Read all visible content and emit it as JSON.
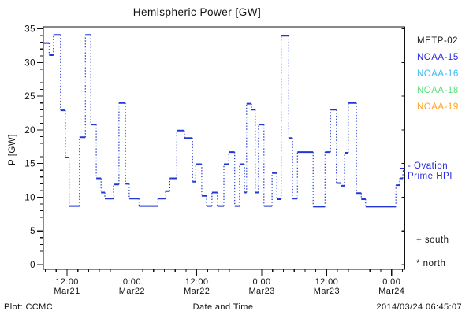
{
  "title": "Hemispheric Power [GW]",
  "footer": {
    "plot_credit": "Plot: CCMC",
    "xaxis_title": "Date and Time",
    "timestamp": "2014/03/24 06:45:07"
  },
  "legend": {
    "satellites": [
      {
        "label": "METP-02",
        "color": "#1a1a1a"
      },
      {
        "label": "NOAA-15",
        "color": "#2a2ae0"
      },
      {
        "label": "NOAA-16",
        "color": "#38bdf0"
      },
      {
        "label": "NOAA-18",
        "color": "#5ce07d"
      },
      {
        "label": "NOAA-19",
        "color": "#ffa126"
      }
    ],
    "line_label_line1": "- Ovation",
    "line_label_line2": "Prime HPI",
    "line_color": "#2a2ae0",
    "south_label": "+ south",
    "north_label": "* north"
  },
  "axis_color": "#111111",
  "chart_data": {
    "type": "line",
    "style": "histogram-step; solid horizontal levels, dotted vertical connectors",
    "title": "Hemispheric Power [GW]",
    "xlabel": "Date and Time",
    "ylabel": "P [GW]",
    "ylim": [
      0,
      35
    ],
    "y_major_step": 5,
    "y_minor_step": 1,
    "x_hours_range": [
      7.6,
      74.45
    ],
    "x_minor_step_hours": 2,
    "x_major_ticks": [
      {
        "hour": 12,
        "time": "12:00",
        "date": "Mar21"
      },
      {
        "hour": 24,
        "time": "0:00",
        "date": "Mar22"
      },
      {
        "hour": 36,
        "time": "12:00",
        "date": "Mar22"
      },
      {
        "hour": 48,
        "time": "0:00",
        "date": "Mar23"
      },
      {
        "hour": 60,
        "time": "12:00",
        "date": "Mar23"
      },
      {
        "hour": 72,
        "time": "0:00",
        "date": "Mar24"
      }
    ],
    "series": [
      {
        "name": "Ovation Prime HPI",
        "color": "#2139d4",
        "hours_since_mar21_0000": [
          7.6,
          8.7,
          9.5,
          10.8,
          11.7,
          12.4,
          14.3,
          15.4,
          16.4,
          17.4,
          18.3,
          19.0,
          20.6,
          21.6,
          22.8,
          23.5,
          25.3,
          28.8,
          30.2,
          31.0,
          32.3,
          33.7,
          35.2,
          35.8,
          36.9,
          37.8,
          38.8,
          39.8,
          41.0,
          41.9,
          43.0,
          43.9,
          44.8,
          45.2,
          46.1,
          46.8,
          47.4,
          48.4,
          49.9,
          50.8,
          51.6,
          53.0,
          53.7,
          54.6,
          57.5,
          59.7,
          60.7,
          61.8,
          62.6,
          63.3,
          64.0,
          65.5,
          66.4,
          67.2,
          72.8,
          73.5,
          74.1
        ],
        "values_gw": [
          32.9,
          31.1,
          34.1,
          22.9,
          15.9,
          8.7,
          18.9,
          34.1,
          20.8,
          12.8,
          10.7,
          9.8,
          11.9,
          24.0,
          12.0,
          9.8,
          8.7,
          9.8,
          10.9,
          12.8,
          19.9,
          18.8,
          12.3,
          14.9,
          10.2,
          8.7,
          10.7,
          8.7,
          14.9,
          16.7,
          8.7,
          14.9,
          10.7,
          23.9,
          23.0,
          10.7,
          20.8,
          8.7,
          13.6,
          9.7,
          34.0,
          18.8,
          9.8,
          16.7,
          8.6,
          16.7,
          23.0,
          12.1,
          11.7,
          16.6,
          24.0,
          10.6,
          9.7,
          8.6,
          11.8,
          12.8,
          13.9
        ]
      }
    ]
  }
}
